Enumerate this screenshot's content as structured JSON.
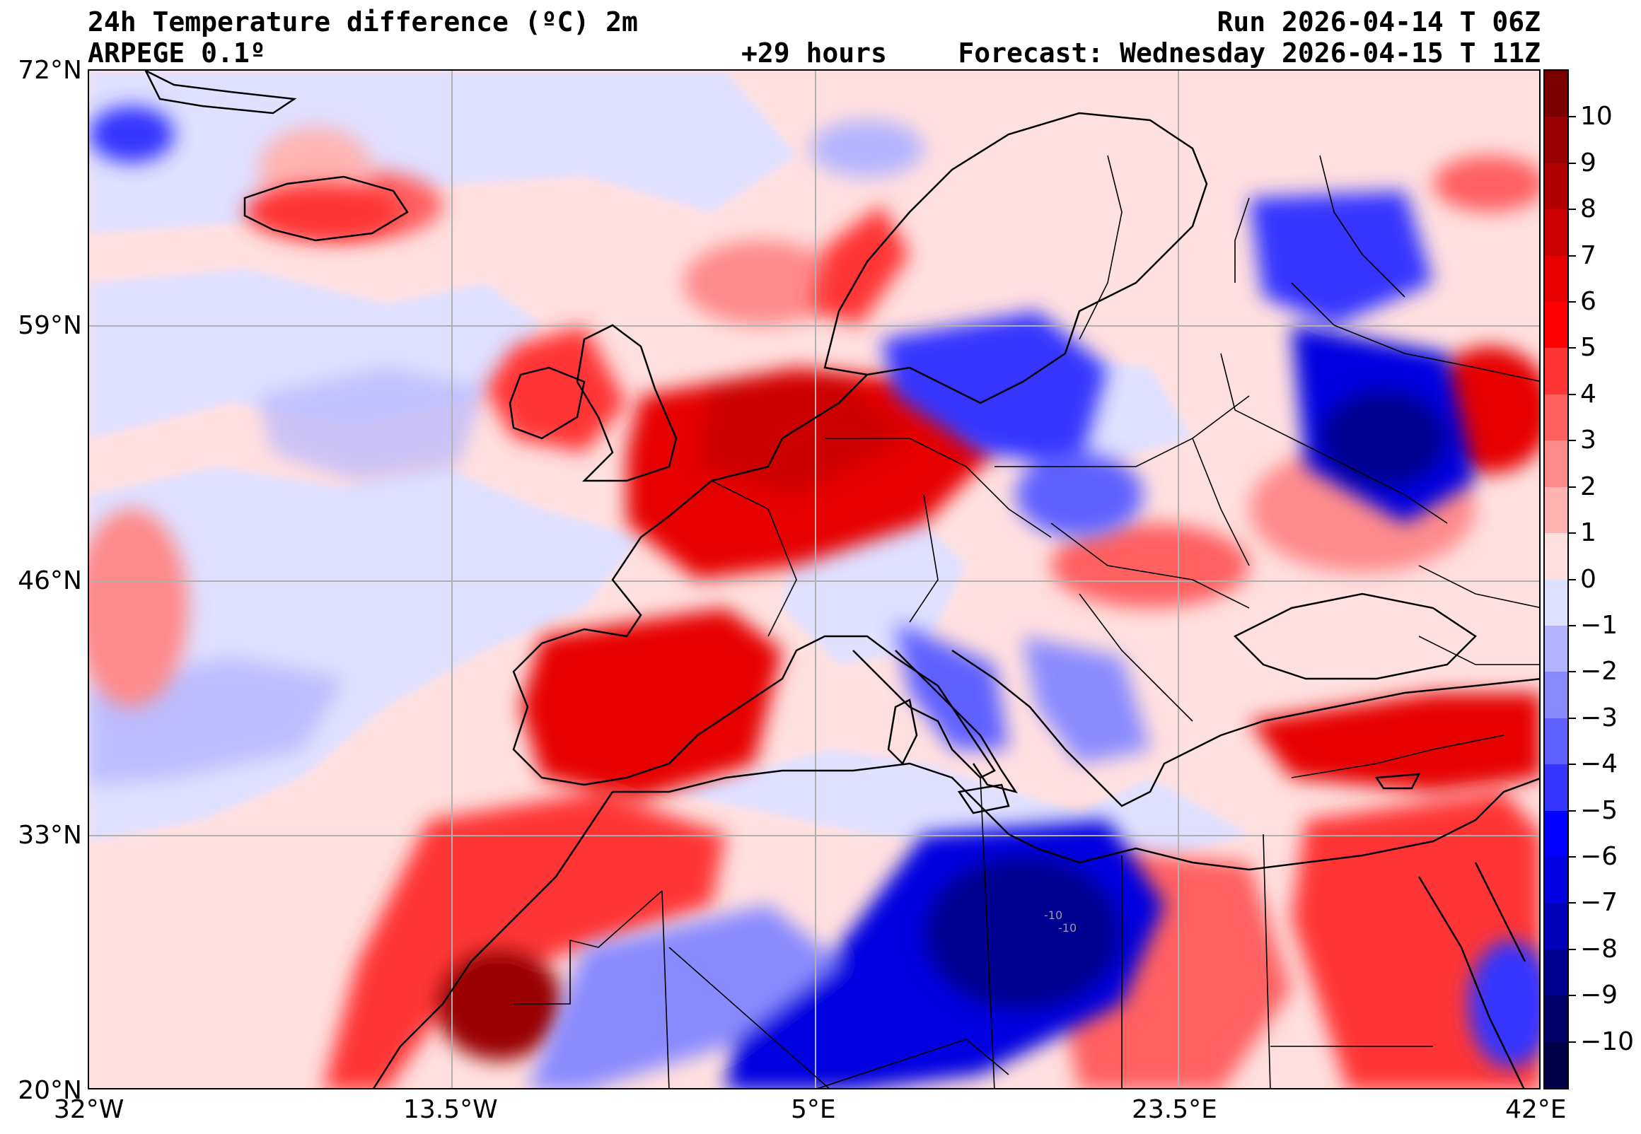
{
  "header": {
    "title": "24h Temperature difference (ºC) 2m",
    "model": "ARPEGE 0.1º",
    "lead_time": "+29 hours",
    "run": "Run 2026-04-14 T 06Z",
    "forecast": "Forecast: Wednesday 2026-04-15 T 11Z"
  },
  "map": {
    "lon_labels": [
      "32°W",
      "13.5°W",
      "5°E",
      "23.5°E",
      "42°E"
    ],
    "lat_labels": [
      "72°N",
      "59°N",
      "46°N",
      "33°N",
      "20°N"
    ],
    "lon_range": [
      -32,
      42
    ],
    "lat_range": [
      20,
      72
    ],
    "gridlines": true,
    "contour_annotations": [
      "-10",
      "-10"
    ]
  },
  "colorbar": {
    "labels": [
      "10",
      "9",
      "8",
      "7",
      "6",
      "5",
      "4",
      "3",
      "2",
      "1",
      "0",
      "−1",
      "−2",
      "−3",
      "−4",
      "−5",
      "−6",
      "−7",
      "−8",
      "−9",
      "−10"
    ],
    "range": [
      -11,
      11
    ],
    "colors_top_to_bottom": [
      "#7a0000",
      "#990000",
      "#b00000",
      "#cc0000",
      "#e60000",
      "#ff0000",
      "#ff3535",
      "#ff6060",
      "#ff8a8a",
      "#ffb3b3",
      "#ffe0e0",
      "#e0e0ff",
      "#b3b3ff",
      "#8a8aff",
      "#6060ff",
      "#3535ff",
      "#0000ff",
      "#0000e0",
      "#0000b8",
      "#000090",
      "#00006a",
      "#000048"
    ]
  },
  "colors": {
    "warm_light": "#ffe0e0",
    "cool_light": "#e0e0ff",
    "border": "#000000",
    "grid": "#b0b0b0"
  }
}
